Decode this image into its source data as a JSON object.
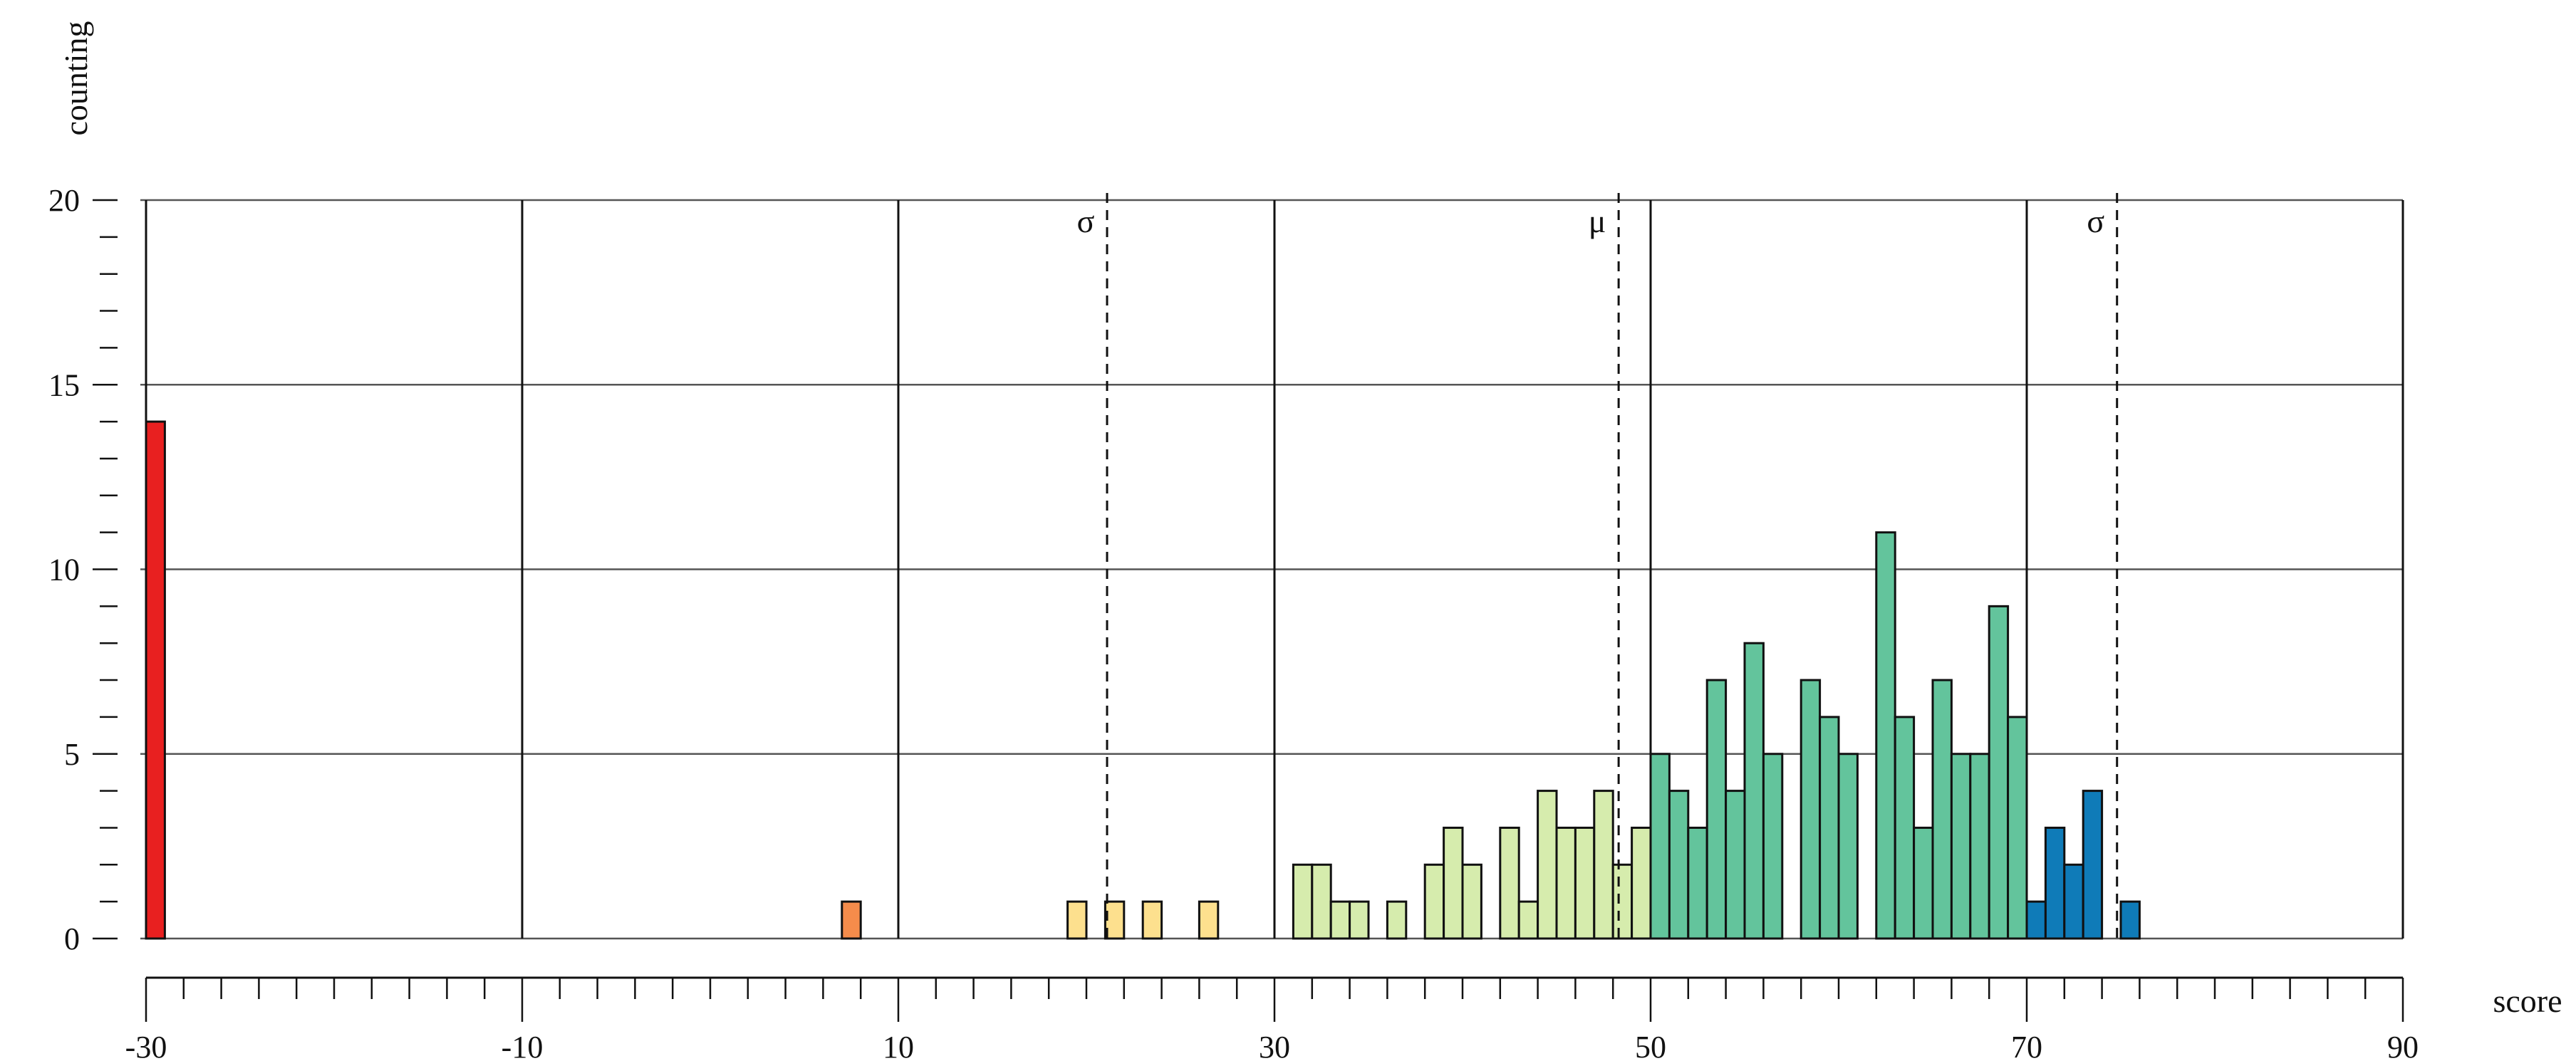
{
  "chart_data": {
    "type": "bar",
    "title": "",
    "xlabel": "score",
    "ylabel": "counting",
    "xlim": [
      -30,
      90
    ],
    "ylim": [
      0,
      20
    ],
    "x_ticks": [
      "-30",
      "-10",
      "10",
      "30",
      "50",
      "70",
      "90"
    ],
    "y_ticks": [
      "0",
      "5",
      "10",
      "15",
      "20"
    ],
    "grid": true,
    "bin_width": 1,
    "bars": [
      {
        "x": -30,
        "value": 14,
        "color": "#e82020"
      },
      {
        "x": 7,
        "value": 1,
        "color": "#f58c4b"
      },
      {
        "x": 19,
        "value": 1,
        "color": "#fde08e"
      },
      {
        "x": 21,
        "value": 1,
        "color": "#fde08e"
      },
      {
        "x": 23,
        "value": 1,
        "color": "#fde08e"
      },
      {
        "x": 26,
        "value": 1,
        "color": "#fde08e"
      },
      {
        "x": 31,
        "value": 2,
        "color": "#d6ecad"
      },
      {
        "x": 32,
        "value": 2,
        "color": "#d6ecad"
      },
      {
        "x": 33,
        "value": 1,
        "color": "#d6ecad"
      },
      {
        "x": 34,
        "value": 1,
        "color": "#d6ecad"
      },
      {
        "x": 36,
        "value": 1,
        "color": "#d6ecad"
      },
      {
        "x": 38,
        "value": 2,
        "color": "#d6ecad"
      },
      {
        "x": 39,
        "value": 3,
        "color": "#d6ecad"
      },
      {
        "x": 40,
        "value": 2,
        "color": "#d6ecad"
      },
      {
        "x": 42,
        "value": 3,
        "color": "#d6ecad"
      },
      {
        "x": 43,
        "value": 1,
        "color": "#d6ecad"
      },
      {
        "x": 44,
        "value": 4,
        "color": "#d6ecad"
      },
      {
        "x": 45,
        "value": 3,
        "color": "#d6ecad"
      },
      {
        "x": 46,
        "value": 3,
        "color": "#d6ecad"
      },
      {
        "x": 47,
        "value": 4,
        "color": "#d6ecad"
      },
      {
        "x": 48,
        "value": 2,
        "color": "#d6ecad"
      },
      {
        "x": 49,
        "value": 3,
        "color": "#d6ecad"
      },
      {
        "x": 50,
        "value": 5,
        "color": "#63c49c"
      },
      {
        "x": 51,
        "value": 4,
        "color": "#63c49c"
      },
      {
        "x": 52,
        "value": 3,
        "color": "#63c49c"
      },
      {
        "x": 53,
        "value": 7,
        "color": "#63c49c"
      },
      {
        "x": 54,
        "value": 4,
        "color": "#63c49c"
      },
      {
        "x": 55,
        "value": 8,
        "color": "#63c49c"
      },
      {
        "x": 56,
        "value": 5,
        "color": "#63c49c"
      },
      {
        "x": 58,
        "value": 7,
        "color": "#63c49c"
      },
      {
        "x": 59,
        "value": 6,
        "color": "#63c49c"
      },
      {
        "x": 60,
        "value": 5,
        "color": "#63c49c"
      },
      {
        "x": 62,
        "value": 11,
        "color": "#63c49c"
      },
      {
        "x": 63,
        "value": 6,
        "color": "#63c49c"
      },
      {
        "x": 64,
        "value": 3,
        "color": "#63c49c"
      },
      {
        "x": 65,
        "value": 7,
        "color": "#63c49c"
      },
      {
        "x": 66,
        "value": 5,
        "color": "#63c49c"
      },
      {
        "x": 67,
        "value": 5,
        "color": "#63c49c"
      },
      {
        "x": 68,
        "value": 9,
        "color": "#63c49c"
      },
      {
        "x": 69,
        "value": 6,
        "color": "#63c49c"
      },
      {
        "x": 70,
        "value": 1,
        "color": "#0f7bb8"
      },
      {
        "x": 71,
        "value": 3,
        "color": "#0f7bb8"
      },
      {
        "x": 72,
        "value": 2,
        "color": "#0f7bb8"
      },
      {
        "x": 73,
        "value": 4,
        "color": "#0f7bb8"
      },
      {
        "x": 75,
        "value": 1,
        "color": "#0f7bb8"
      }
    ],
    "markers": [
      {
        "label": "σ",
        "x": 21.1
      },
      {
        "label": "μ",
        "x": 48.3
      },
      {
        "label": "σ",
        "x": 74.8
      }
    ],
    "colors": {
      "grid": "#555555",
      "axis": "#111111",
      "bar_stroke": "#111111"
    }
  }
}
